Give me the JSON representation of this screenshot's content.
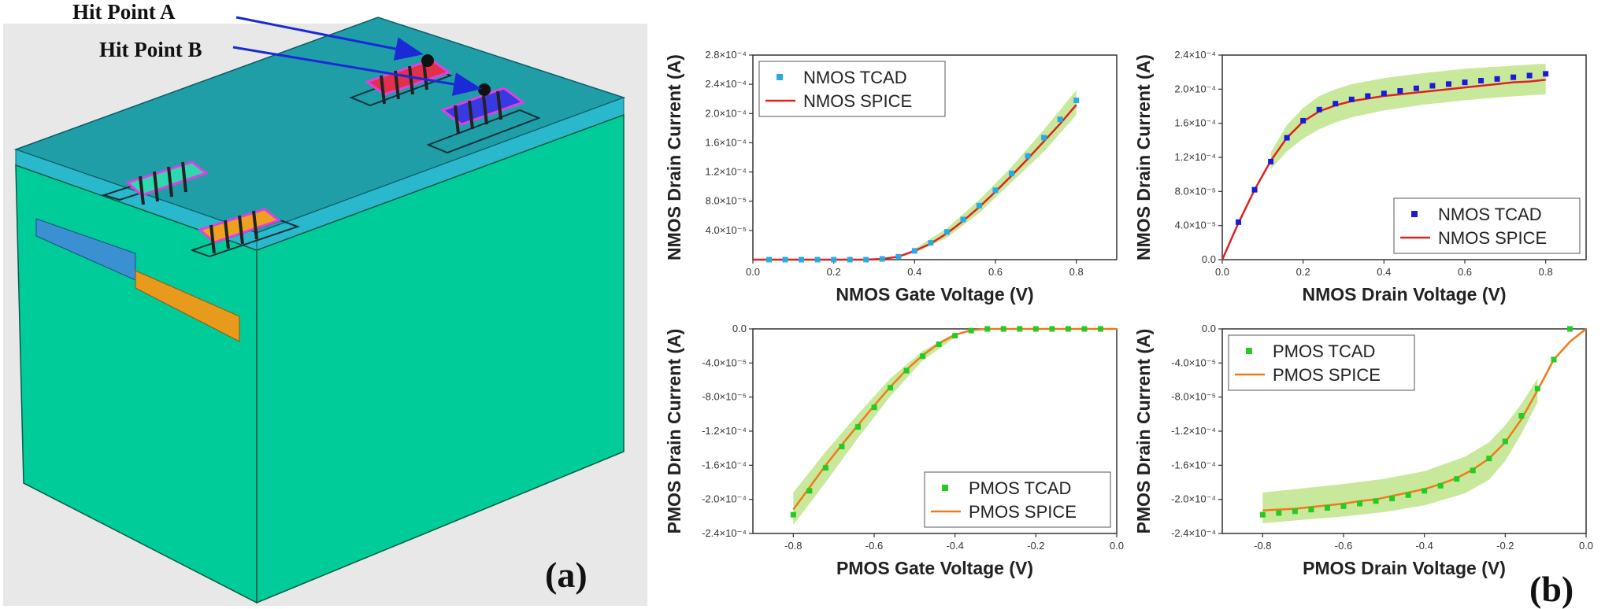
{
  "panel_a": {
    "label": "(a)",
    "hit_point_a": "Hit Point A",
    "hit_point_b": "Hit Point B",
    "colors": {
      "background": "#e8e8e8",
      "substrate_side": "#00cc99",
      "top_layer": "#2aa7b8",
      "top_face": "#1f9ea8",
      "arrow": "#1a2ad6",
      "fin_magenta": "#e040e0",
      "fin_red": "#e0304a",
      "fin_blue": "#3a38e0",
      "fin_teal": "#30d8b0",
      "fin_orange": "#f0a020"
    }
  },
  "panel_b": {
    "label": "(b)"
  },
  "chart_data": [
    {
      "id": "nmos-gate",
      "type": "line",
      "title": "",
      "xlabel": "NMOS Gate Voltage (V)",
      "ylabel": "NMOS Drain Current (A)",
      "xlim": [
        0.0,
        0.9
      ],
      "ylim": [
        0.0,
        0.00028
      ],
      "xticks": [
        "0.0",
        "0.2",
        "0.4",
        "0.6",
        "0.8"
      ],
      "xtick_values": [
        0.0,
        0.2,
        0.4,
        0.6,
        0.8
      ],
      "yticks": [
        "4.0×10⁻⁵",
        "8.0×10⁻⁵",
        "1.2×10⁻⁴",
        "1.6×10⁻⁴",
        "2.0×10⁻⁴",
        "2.4×10⁻⁴",
        "2.8×10⁻⁴"
      ],
      "ytick_values": [
        4e-05,
        8e-05,
        0.00012,
        0.00016,
        0.0002,
        0.00024,
        0.00028
      ],
      "legend_position": "top-left",
      "series": [
        {
          "name": "NMOS TCAD",
          "kind": "markers",
          "color": "#29abe2",
          "x": [
            0.04,
            0.08,
            0.12,
            0.16,
            0.2,
            0.24,
            0.28,
            0.32,
            0.36,
            0.4,
            0.44,
            0.48,
            0.52,
            0.56,
            0.6,
            0.64,
            0.68,
            0.72,
            0.76,
            0.8
          ],
          "y": [
            0,
            0,
            0,
            0,
            0,
            0,
            0,
            1e-06,
            4e-06,
            1.2e-05,
            2.3e-05,
            3.8e-05,
            5.5e-05,
            7.4e-05,
            9.5e-05,
            0.000118,
            0.000142,
            0.000167,
            0.000192,
            0.000218
          ]
        },
        {
          "name": "NMOS SPICE",
          "kind": "line",
          "color": "#dd2222",
          "x": [
            0.0,
            0.04,
            0.08,
            0.12,
            0.16,
            0.2,
            0.24,
            0.28,
            0.32,
            0.36,
            0.4,
            0.44,
            0.48,
            0.52,
            0.56,
            0.6,
            0.64,
            0.68,
            0.72,
            0.76,
            0.8
          ],
          "y": [
            0,
            0,
            0,
            0,
            0,
            0,
            0,
            0,
            1e-06,
            4e-06,
            1.2e-05,
            2.2e-05,
            3.6e-05,
            5.3e-05,
            7.2e-05,
            9.3e-05,
            0.000115,
            0.000138,
            0.000162,
            0.000186,
            0.000212
          ]
        }
      ],
      "band": {
        "color": "#b6e27a",
        "x": [
          0.4,
          0.48,
          0.56,
          0.64,
          0.72,
          0.8
        ],
        "lower": [
          9e-06,
          3e-05,
          6.4e-05,
          0.000106,
          0.000148,
          0.000198
        ],
        "upper": [
          1.5e-05,
          4.3e-05,
          8.2e-05,
          0.000127,
          0.000178,
          0.000232
        ]
      }
    },
    {
      "id": "nmos-drain",
      "type": "line",
      "title": "",
      "xlabel": "NMOS Drain Voltage (V)",
      "ylabel": "NMOS Drain Current (A)",
      "xlim": [
        0.0,
        0.9
      ],
      "ylim": [
        0.0,
        0.00024
      ],
      "xticks": [
        "0.0",
        "0.2",
        "0.4",
        "0.6",
        "0.8"
      ],
      "xtick_values": [
        0.0,
        0.2,
        0.4,
        0.6,
        0.8
      ],
      "yticks": [
        "0.0",
        "4.0×10⁻⁵",
        "8.0×10⁻⁵",
        "1.2×10⁻⁴",
        "1.6×10⁻⁴",
        "2.0×10⁻⁴",
        "2.4×10⁻⁴"
      ],
      "ytick_values": [
        0.0,
        4e-05,
        8e-05,
        0.00012,
        0.00016,
        0.0002,
        0.00024
      ],
      "legend_position": "bottom-right",
      "series": [
        {
          "name": "NMOS TCAD",
          "kind": "markers",
          "color": "#1a1ad8",
          "x": [
            0.04,
            0.08,
            0.12,
            0.16,
            0.2,
            0.24,
            0.28,
            0.32,
            0.36,
            0.4,
            0.44,
            0.48,
            0.52,
            0.56,
            0.6,
            0.64,
            0.68,
            0.72,
            0.76,
            0.8
          ],
          "y": [
            4.4e-05,
            8.2e-05,
            0.000115,
            0.000143,
            0.000163,
            0.000176,
            0.000183,
            0.000188,
            0.000192,
            0.000195,
            0.000198,
            0.000201,
            0.000204,
            0.000206,
            0.000208,
            0.00021,
            0.000212,
            0.000214,
            0.000216,
            0.000218
          ]
        },
        {
          "name": "NMOS SPICE",
          "kind": "line",
          "color": "#dd2222",
          "x": [
            0.0,
            0.04,
            0.08,
            0.12,
            0.16,
            0.2,
            0.24,
            0.28,
            0.32,
            0.36,
            0.4,
            0.44,
            0.48,
            0.52,
            0.56,
            0.6,
            0.64,
            0.68,
            0.72,
            0.76,
            0.8
          ],
          "y": [
            0,
            4.3e-05,
            8.2e-05,
            0.000116,
            0.000143,
            0.000162,
            0.000174,
            0.000181,
            0.000186,
            0.000189,
            0.000192,
            0.000194,
            0.000196,
            0.000198,
            0.0002,
            0.000202,
            0.000204,
            0.000206,
            0.000208,
            0.000209,
            0.000211
          ]
        }
      ],
      "band": {
        "color": "#b6e27a",
        "x": [
          0.12,
          0.16,
          0.2,
          0.24,
          0.28,
          0.32,
          0.4,
          0.5,
          0.6,
          0.7,
          0.8
        ],
        "lower": [
          0.000106,
          0.000127,
          0.000142,
          0.000153,
          0.000161,
          0.000167,
          0.000175,
          0.000182,
          0.000187,
          0.000191,
          0.000194
        ],
        "upper": [
          0.000126,
          0.000158,
          0.000178,
          0.000192,
          0.0002,
          0.000206,
          0.000213,
          0.000219,
          0.000224,
          0.000227,
          0.00023
        ]
      }
    },
    {
      "id": "pmos-gate",
      "type": "line",
      "title": "",
      "xlabel": "PMOS Gate Voltage (V)",
      "ylabel": "PMOS Drain Current (A)",
      "xlim": [
        -0.9,
        0.0
      ],
      "ylim": [
        -0.00024,
        0.0
      ],
      "xticks": [
        "-0.8",
        "-0.6",
        "-0.4",
        "-0.2",
        "0.0"
      ],
      "xtick_values": [
        -0.8,
        -0.6,
        -0.4,
        -0.2,
        0.0
      ],
      "yticks": [
        "0.0",
        "-4.0×10⁻⁵",
        "-8.0×10⁻⁵",
        "-1.2×10⁻⁴",
        "-1.6×10⁻⁴",
        "-2.0×10⁻⁴",
        "-2.4×10⁻⁴"
      ],
      "ytick_values": [
        0.0,
        -4e-05,
        -8e-05,
        -0.00012,
        -0.00016,
        -0.0002,
        -0.00024
      ],
      "legend_position": "bottom-right",
      "series": [
        {
          "name": "PMOS TCAD",
          "kind": "markers",
          "color": "#22cc22",
          "x": [
            -0.8,
            -0.76,
            -0.72,
            -0.68,
            -0.64,
            -0.6,
            -0.56,
            -0.52,
            -0.48,
            -0.44,
            -0.4,
            -0.36,
            -0.32,
            -0.28,
            -0.24,
            -0.2,
            -0.16,
            -0.12,
            -0.08,
            -0.04
          ],
          "y": [
            -0.000218,
            -0.00019,
            -0.000163,
            -0.000138,
            -0.000115,
            -9.2e-05,
            -6.9e-05,
            -4.9e-05,
            -3.2e-05,
            -1.8e-05,
            -8e-06,
            -2e-06,
            0,
            0,
            0,
            0,
            0,
            0,
            0,
            0
          ]
        },
        {
          "name": "PMOS SPICE",
          "kind": "line",
          "color": "#f07a1a",
          "x": [
            -0.8,
            -0.76,
            -0.72,
            -0.68,
            -0.64,
            -0.6,
            -0.56,
            -0.52,
            -0.48,
            -0.44,
            -0.4,
            -0.36,
            -0.32,
            -0.28,
            -0.24,
            -0.2,
            -0.16,
            -0.12,
            -0.08,
            -0.04,
            0.0
          ],
          "y": [
            -0.000212,
            -0.000186,
            -0.00016,
            -0.000136,
            -0.000113,
            -9e-05,
            -6.8e-05,
            -4.8e-05,
            -3.1e-05,
            -1.7e-05,
            -7e-06,
            -1.5e-06,
            0,
            0,
            0,
            0,
            0,
            0,
            0,
            0,
            0
          ]
        }
      ],
      "band": {
        "color": "#b6e27a",
        "x": [
          -0.8,
          -0.72,
          -0.64,
          -0.56,
          -0.48,
          -0.4
        ],
        "lower": [
          -0.00023,
          -0.00018,
          -0.000128,
          -7.9e-05,
          -3.7e-05,
          -1e-05
        ],
        "upper": [
          -0.000192,
          -0.000144,
          -0.0001,
          -5.8e-05,
          -2.6e-05,
          -5e-06
        ]
      }
    },
    {
      "id": "pmos-drain",
      "type": "line",
      "title": "",
      "xlabel": "PMOS Drain Voltage (V)",
      "ylabel": "PMOS Drain Current (A)",
      "xlim": [
        -0.9,
        0.0
      ],
      "ylim": [
        -0.00024,
        0.0
      ],
      "xticks": [
        "-0.8",
        "-0.6",
        "-0.4",
        "-0.2",
        "0.0"
      ],
      "xtick_values": [
        -0.8,
        -0.6,
        -0.4,
        -0.2,
        0.0
      ],
      "yticks": [
        "0.0",
        "-4.0×10⁻⁵",
        "-8.0×10⁻⁵",
        "-1.2×10⁻⁴",
        "-1.6×10⁻⁴",
        "-2.0×10⁻⁴",
        "-2.4×10⁻⁴"
      ],
      "ytick_values": [
        0.0,
        -4e-05,
        -8e-05,
        -0.00012,
        -0.00016,
        -0.0002,
        -0.00024
      ],
      "legend_position": "top-left",
      "series": [
        {
          "name": "PMOS TCAD",
          "kind": "markers",
          "color": "#22cc22",
          "x": [
            -0.8,
            -0.76,
            -0.72,
            -0.68,
            -0.64,
            -0.6,
            -0.56,
            -0.52,
            -0.48,
            -0.44,
            -0.4,
            -0.36,
            -0.32,
            -0.28,
            -0.24,
            -0.2,
            -0.16,
            -0.12,
            -0.08,
            -0.04
          ],
          "y": [
            -0.000218,
            -0.000216,
            -0.000214,
            -0.000212,
            -0.00021,
            -0.000208,
            -0.000205,
            -0.000202,
            -0.000199,
            -0.000195,
            -0.00019,
            -0.000184,
            -0.000176,
            -0.000166,
            -0.000152,
            -0.000132,
            -0.000102,
            -7e-05,
            -3.6e-05,
            0
          ]
        },
        {
          "name": "PMOS SPICE",
          "kind": "line",
          "color": "#f07a1a",
          "x": [
            -0.8,
            -0.76,
            -0.72,
            -0.68,
            -0.64,
            -0.6,
            -0.56,
            -0.52,
            -0.48,
            -0.44,
            -0.4,
            -0.36,
            -0.32,
            -0.28,
            -0.24,
            -0.2,
            -0.16,
            -0.12,
            -0.08,
            -0.04,
            0.0
          ],
          "y": [
            -0.000213,
            -0.000212,
            -0.000211,
            -0.000209,
            -0.000207,
            -0.000205,
            -0.000202,
            -0.0002,
            -0.000196,
            -0.000192,
            -0.000188,
            -0.000182,
            -0.000175,
            -0.000165,
            -0.000152,
            -0.000133,
            -0.000106,
            -7.2e-05,
            -3.6e-05,
            -1.5e-05,
            0
          ]
        }
      ],
      "band": {
        "color": "#b6e27a",
        "x": [
          -0.8,
          -0.7,
          -0.6,
          -0.5,
          -0.4,
          -0.3,
          -0.24,
          -0.2,
          -0.16,
          -0.12
        ],
        "lower": [
          -0.000228,
          -0.000224,
          -0.00022,
          -0.000215,
          -0.000207,
          -0.000193,
          -0.000177,
          -0.000155,
          -0.000123,
          -8.6e-05
        ],
        "upper": [
          -0.000192,
          -0.000187,
          -0.000182,
          -0.000176,
          -0.000167,
          -0.00015,
          -0.000133,
          -0.000113,
          -8.8e-05,
          -5.8e-05
        ]
      }
    }
  ]
}
